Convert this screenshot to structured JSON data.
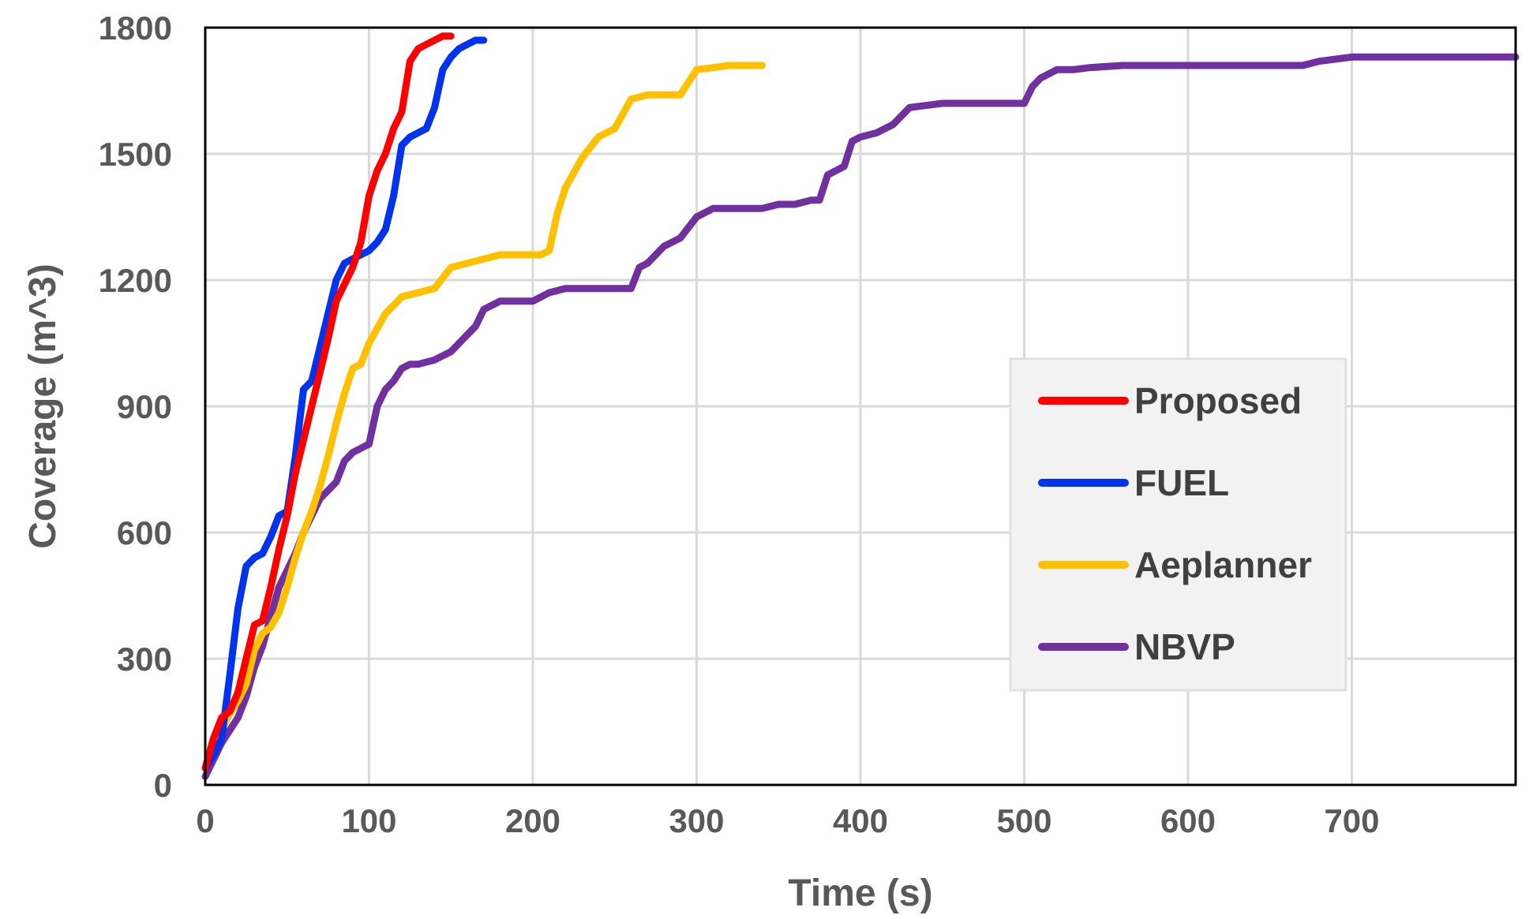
{
  "chart_data": {
    "type": "line",
    "title": "",
    "xlabel": "Time (s)",
    "ylabel": "Coverage (m^3)",
    "xlim": [
      0,
      800
    ],
    "ylim": [
      0,
      1800
    ],
    "xticks": [
      0,
      100,
      200,
      300,
      400,
      500,
      600,
      700
    ],
    "yticks": [
      0,
      300,
      600,
      900,
      1200,
      1500,
      1800
    ],
    "grid": true,
    "legend_position": "center-right",
    "series": [
      {
        "name": "Proposed",
        "color": "#ff0000",
        "x": [
          0,
          5,
          10,
          15,
          20,
          25,
          30,
          35,
          40,
          45,
          50,
          55,
          60,
          65,
          70,
          75,
          80,
          85,
          90,
          95,
          100,
          105,
          110,
          115,
          120,
          125,
          130,
          135,
          140,
          145,
          150
        ],
        "y": [
          40,
          110,
          160,
          175,
          220,
          300,
          380,
          390,
          470,
          560,
          640,
          740,
          820,
          900,
          980,
          1060,
          1150,
          1190,
          1230,
          1290,
          1400,
          1460,
          1500,
          1560,
          1600,
          1720,
          1750,
          1760,
          1770,
          1780,
          1780
        ]
      },
      {
        "name": "FUEL",
        "color": "#0033ee",
        "x": [
          0,
          5,
          10,
          15,
          20,
          25,
          30,
          35,
          40,
          45,
          50,
          55,
          60,
          65,
          70,
          75,
          80,
          85,
          90,
          95,
          100,
          105,
          110,
          115,
          120,
          125,
          130,
          135,
          140,
          145,
          150,
          155,
          160,
          165,
          170
        ],
        "y": [
          40,
          70,
          110,
          260,
          420,
          520,
          540,
          550,
          590,
          640,
          650,
          780,
          940,
          960,
          1040,
          1120,
          1200,
          1240,
          1250,
          1260,
          1270,
          1290,
          1320,
          1400,
          1520,
          1540,
          1550,
          1560,
          1610,
          1700,
          1730,
          1750,
          1760,
          1770,
          1770
        ]
      },
      {
        "name": "Aeplanner",
        "color": "#ffc000",
        "x": [
          0,
          5,
          10,
          15,
          20,
          25,
          30,
          35,
          40,
          45,
          50,
          55,
          60,
          65,
          70,
          75,
          80,
          85,
          90,
          95,
          100,
          110,
          120,
          130,
          140,
          150,
          160,
          170,
          180,
          190,
          200,
          205,
          210,
          215,
          220,
          230,
          240,
          250,
          260,
          270,
          280,
          290,
          300,
          310,
          320,
          330,
          340
        ],
        "y": [
          40,
          80,
          130,
          170,
          200,
          240,
          320,
          360,
          375,
          410,
          470,
          540,
          600,
          650,
          710,
          780,
          860,
          930,
          990,
          1000,
          1050,
          1120,
          1160,
          1170,
          1180,
          1230,
          1240,
          1250,
          1260,
          1260,
          1260,
          1260,
          1270,
          1360,
          1420,
          1490,
          1540,
          1560,
          1630,
          1640,
          1640,
          1640,
          1700,
          1705,
          1710,
          1710,
          1710
        ]
      },
      {
        "name": "NBVP",
        "color": "#7030a0",
        "x": [
          0,
          5,
          10,
          15,
          20,
          25,
          30,
          35,
          40,
          45,
          50,
          55,
          60,
          65,
          70,
          75,
          80,
          85,
          90,
          95,
          100,
          105,
          110,
          115,
          120,
          125,
          130,
          140,
          150,
          160,
          165,
          170,
          180,
          190,
          200,
          210,
          220,
          230,
          240,
          250,
          260,
          265,
          270,
          280,
          290,
          300,
          310,
          320,
          330,
          340,
          350,
          360,
          370,
          375,
          380,
          390,
          395,
          400,
          410,
          420,
          430,
          440,
          450,
          460,
          470,
          480,
          490,
          500,
          505,
          510,
          520,
          530,
          540,
          560,
          580,
          600,
          650,
          670,
          680,
          700,
          720,
          750,
          800
        ],
        "y": [
          20,
          60,
          100,
          130,
          160,
          210,
          280,
          330,
          400,
          470,
          510,
          550,
          600,
          640,
          680,
          700,
          720,
          770,
          790,
          800,
          810,
          900,
          940,
          960,
          990,
          1000,
          1000,
          1010,
          1030,
          1070,
          1090,
          1130,
          1150,
          1150,
          1150,
          1170,
          1180,
          1180,
          1180,
          1180,
          1180,
          1230,
          1240,
          1280,
          1300,
          1350,
          1370,
          1370,
          1370,
          1370,
          1380,
          1380,
          1390,
          1390,
          1450,
          1470,
          1530,
          1540,
          1550,
          1570,
          1610,
          1615,
          1620,
          1620,
          1620,
          1620,
          1620,
          1620,
          1660,
          1680,
          1700,
          1700,
          1705,
          1710,
          1710,
          1710,
          1710,
          1710,
          1720,
          1730,
          1730,
          1730,
          1730
        ]
      }
    ]
  }
}
